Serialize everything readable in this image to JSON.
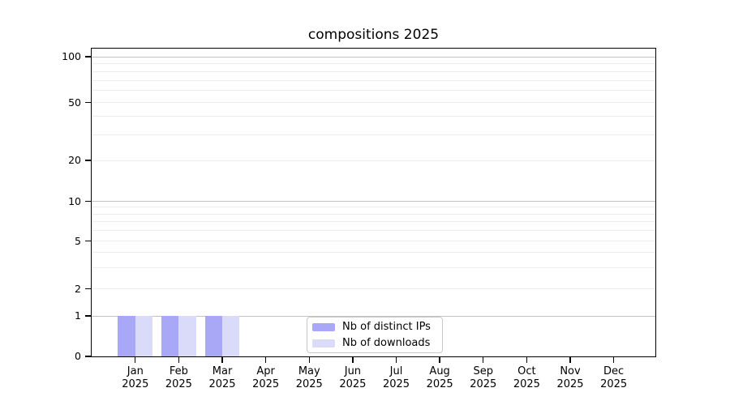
{
  "chart_data": {
    "type": "bar",
    "title": "compositions 2025",
    "categories": [
      "Jan 2025",
      "Feb 2025",
      "Mar 2025",
      "Apr 2025",
      "May 2025",
      "Jun 2025",
      "Jul 2025",
      "Aug 2025",
      "Sep 2025",
      "Oct 2025",
      "Nov 2025",
      "Dec 2025"
    ],
    "series": [
      {
        "name": "Nb of distinct IPs",
        "color": "#a8a8f6",
        "values": [
          1,
          1,
          1,
          0,
          0,
          0,
          0,
          0,
          0,
          0,
          0,
          0
        ]
      },
      {
        "name": "Nb of downloads",
        "color": "#dadaf9",
        "values": [
          1,
          1,
          1,
          0,
          0,
          0,
          0,
          0,
          0,
          0,
          0,
          0
        ]
      }
    ],
    "xlabel": "",
    "ylabel": "",
    "yscale": "symlog",
    "ylim": [
      0,
      115
    ],
    "yticks": [
      0,
      1,
      2,
      5,
      10,
      20,
      50,
      100
    ],
    "decade_ticks": [
      1,
      10,
      100
    ],
    "minor_gridlines": [
      3,
      4,
      6,
      7,
      8,
      9,
      30,
      40,
      60,
      70,
      80,
      90
    ],
    "grid": "horizontal major+minor",
    "legend_position": "lower center inside plot",
    "colors": {
      "major_grid": "#c2c2c2",
      "minor_grid": "#ededed",
      "spine": "#000000",
      "background": "#ffffff",
      "text": "#000000",
      "legend_border": "#c9c9c9"
    }
  }
}
